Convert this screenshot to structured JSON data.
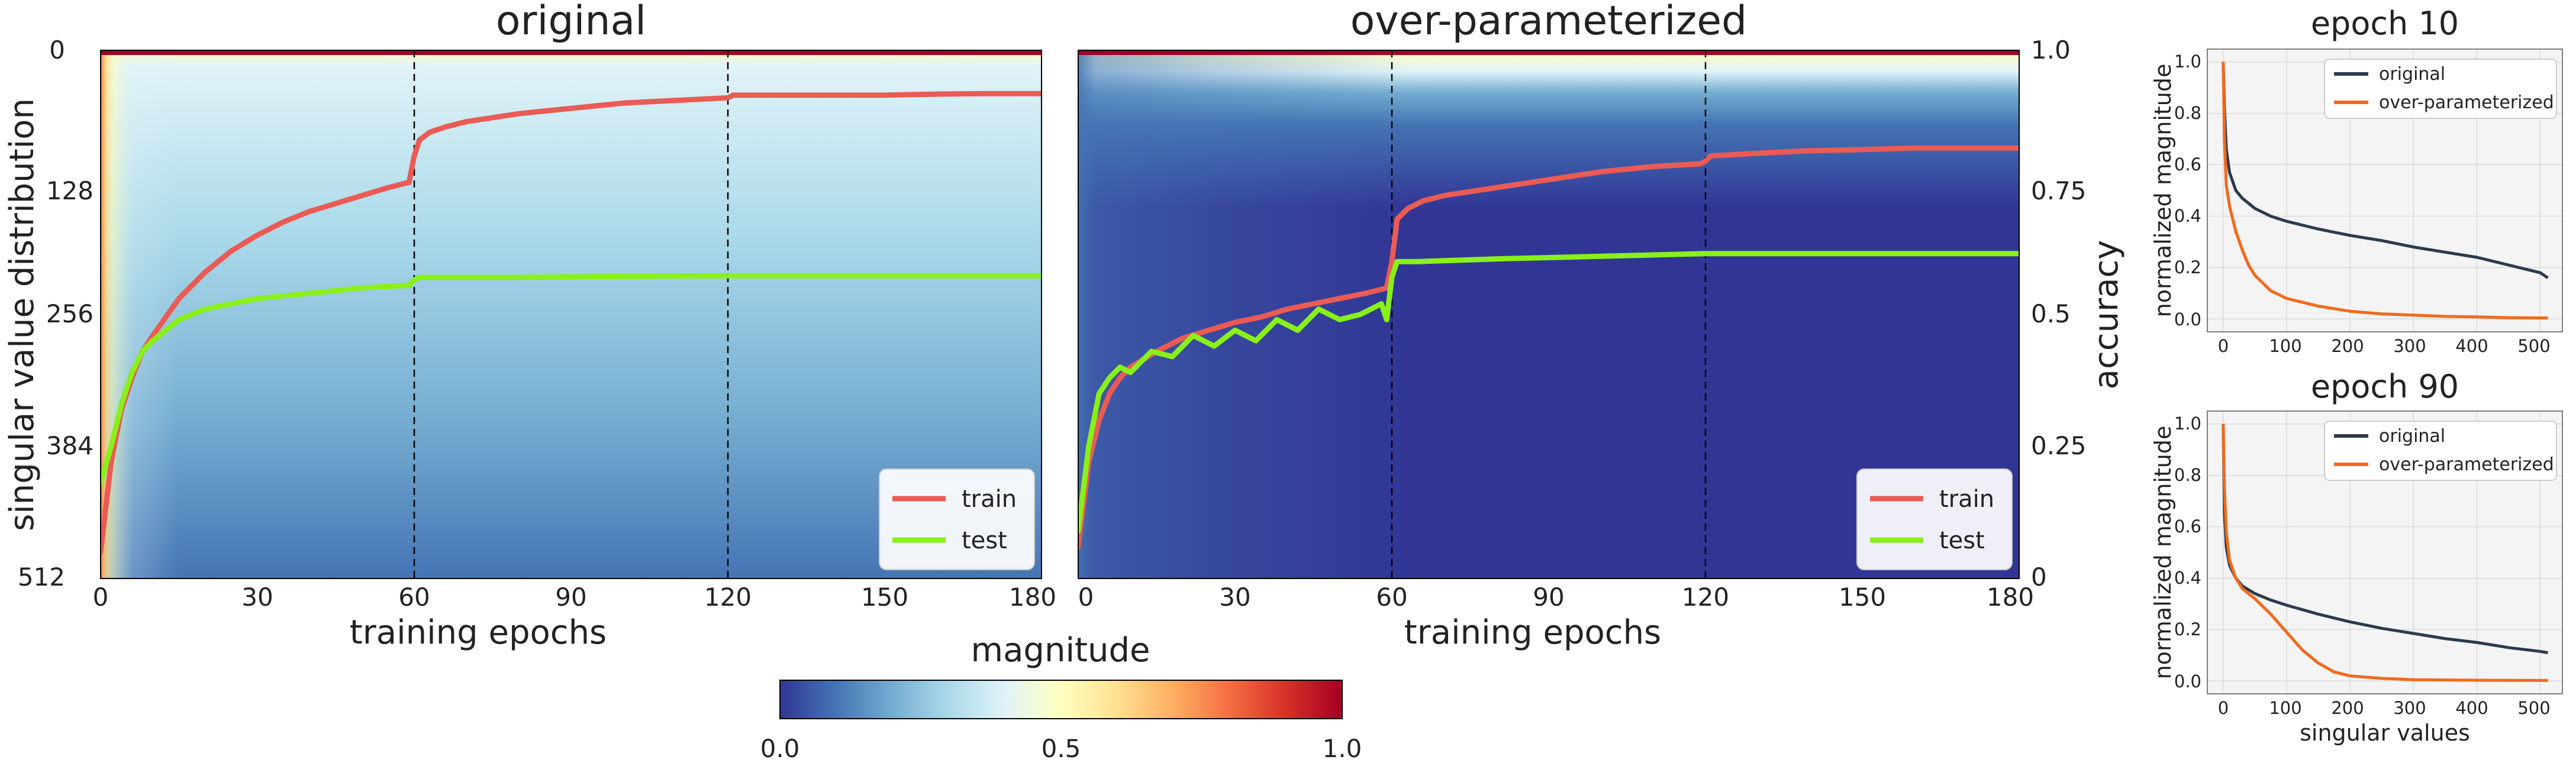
{
  "colors": {
    "train": "#ea5b55",
    "test": "#88f01a",
    "line_original": "#2c3a4c",
    "line_overparam": "#f16a1c",
    "colormap": [
      "#313695",
      "#4575b4",
      "#74add1",
      "#abd9e9",
      "#e0f3f8",
      "#ffffbf",
      "#fee090",
      "#fdae61",
      "#f46d43",
      "#d73027",
      "#a50026"
    ]
  },
  "chart_data": [
    {
      "id": "original",
      "type": "heatmap",
      "title": "original",
      "xlabel": "training epochs",
      "ylabel": "singular value distribution",
      "xlim": [
        0,
        180
      ],
      "ylim": [
        512,
        0
      ],
      "x_ticks": [
        "0",
        "30",
        "60",
        "90",
        "120",
        "150",
        "180"
      ],
      "y_ticks": [
        "0",
        "128",
        "256",
        "384",
        "512"
      ],
      "vlines": [
        60,
        120
      ],
      "heatmap_description": "magnitude of singular values per epoch, colormap RdYlBu_r",
      "legend": {
        "position": "lower-right",
        "entries": [
          "train",
          "test"
        ]
      },
      "series": [
        {
          "name": "train",
          "x": [
            0,
            2,
            4,
            6,
            8,
            10,
            15,
            20,
            25,
            30,
            35,
            40,
            45,
            50,
            55,
            59,
            60,
            61,
            63,
            66,
            70,
            80,
            90,
            100,
            110,
            120,
            121,
            130,
            140,
            150,
            160,
            170,
            180
          ],
          "y": [
            0.05,
            0.22,
            0.32,
            0.38,
            0.43,
            0.46,
            0.53,
            0.58,
            0.62,
            0.65,
            0.675,
            0.695,
            0.71,
            0.725,
            0.74,
            0.75,
            0.8,
            0.83,
            0.845,
            0.855,
            0.865,
            0.88,
            0.89,
            0.9,
            0.905,
            0.91,
            0.915,
            0.915,
            0.915,
            0.915,
            0.917,
            0.918,
            0.918
          ]
        },
        {
          "name": "test",
          "x": [
            0,
            2,
            4,
            6,
            8,
            10,
            15,
            20,
            25,
            30,
            35,
            40,
            45,
            50,
            55,
            59,
            60,
            61,
            65,
            80,
            100,
            120,
            140,
            160,
            180
          ],
          "y": [
            0.18,
            0.25,
            0.33,
            0.39,
            0.43,
            0.45,
            0.49,
            0.51,
            0.52,
            0.53,
            0.535,
            0.54,
            0.545,
            0.55,
            0.553,
            0.555,
            0.565,
            0.57,
            0.57,
            0.57,
            0.572,
            0.573,
            0.573,
            0.573,
            0.573
          ]
        }
      ]
    },
    {
      "id": "overparam",
      "type": "heatmap",
      "title": "over-parameterized",
      "xlabel": "training epochs",
      "ylabel": "accuracy",
      "xlim": [
        0,
        180
      ],
      "ylim": [
        0,
        1
      ],
      "x_ticks": [
        "0",
        "30",
        "60",
        "90",
        "120",
        "150",
        "180"
      ],
      "y_ticks": [
        "0",
        "0.25",
        "0.5",
        "0.75",
        "1.0"
      ],
      "vlines": [
        60,
        120
      ],
      "legend": {
        "position": "lower-right",
        "entries": [
          "train",
          "test"
        ]
      },
      "series": [
        {
          "name": "train",
          "x": [
            0,
            2,
            4,
            6,
            8,
            10,
            15,
            20,
            25,
            30,
            35,
            40,
            45,
            50,
            55,
            59,
            60,
            61,
            63,
            66,
            70,
            80,
            90,
            100,
            110,
            119,
            120,
            121,
            130,
            140,
            150,
            160,
            170,
            180
          ],
          "y": [
            0.06,
            0.22,
            0.3,
            0.35,
            0.38,
            0.4,
            0.43,
            0.455,
            0.47,
            0.485,
            0.495,
            0.51,
            0.52,
            0.53,
            0.54,
            0.55,
            0.6,
            0.68,
            0.7,
            0.715,
            0.725,
            0.74,
            0.755,
            0.77,
            0.78,
            0.785,
            0.79,
            0.8,
            0.805,
            0.81,
            0.812,
            0.815,
            0.815,
            0.815
          ]
        },
        {
          "name": "test",
          "x": [
            0,
            2,
            4,
            6,
            8,
            10,
            14,
            18,
            22,
            26,
            30,
            34,
            38,
            42,
            46,
            50,
            54,
            58,
            59,
            60,
            61,
            65,
            80,
            100,
            120,
            140,
            160,
            180
          ],
          "y": [
            0.09,
            0.25,
            0.35,
            0.38,
            0.4,
            0.39,
            0.43,
            0.42,
            0.46,
            0.44,
            0.47,
            0.45,
            0.49,
            0.47,
            0.51,
            0.49,
            0.5,
            0.52,
            0.49,
            0.57,
            0.6,
            0.6,
            0.605,
            0.61,
            0.615,
            0.615,
            0.615,
            0.615
          ]
        }
      ]
    },
    {
      "id": "epoch10",
      "type": "line",
      "title": "epoch 10",
      "xlabel": "",
      "ylabel": "normalized magnitude",
      "xlim": [
        -25,
        535
      ],
      "ylim": [
        -0.05,
        1.05
      ],
      "x_ticks": [
        "0",
        "100",
        "200",
        "300",
        "400",
        "500"
      ],
      "y_ticks": [
        "0.0",
        "0.2",
        "0.4",
        "0.6",
        "0.8",
        "1.0"
      ],
      "grid": true,
      "legend": {
        "position": "top-right",
        "entries": [
          "original",
          "over-parameterized"
        ]
      },
      "series": [
        {
          "name": "original",
          "x": [
            0,
            2,
            5,
            10,
            20,
            30,
            50,
            75,
            100,
            150,
            200,
            250,
            300,
            350,
            400,
            450,
            500,
            512
          ],
          "y": [
            1.0,
            0.82,
            0.66,
            0.57,
            0.5,
            0.47,
            0.43,
            0.4,
            0.38,
            0.35,
            0.325,
            0.305,
            0.28,
            0.26,
            0.24,
            0.21,
            0.18,
            0.16
          ]
        },
        {
          "name": "over-parameterized",
          "x": [
            0,
            2,
            5,
            10,
            20,
            30,
            40,
            50,
            75,
            100,
            150,
            200,
            250,
            300,
            350,
            400,
            450,
            500,
            512
          ],
          "y": [
            1.0,
            0.7,
            0.52,
            0.44,
            0.34,
            0.27,
            0.21,
            0.17,
            0.11,
            0.08,
            0.05,
            0.03,
            0.02,
            0.015,
            0.01,
            0.008,
            0.005,
            0.004,
            0.004
          ]
        }
      ]
    },
    {
      "id": "epoch90",
      "type": "line",
      "title": "epoch 90",
      "xlabel": "singular values",
      "ylabel": "normalized magnitude",
      "xlim": [
        -25,
        535
      ],
      "ylim": [
        -0.05,
        1.05
      ],
      "x_ticks": [
        "0",
        "100",
        "200",
        "300",
        "400",
        "500"
      ],
      "y_ticks": [
        "0.0",
        "0.2",
        "0.4",
        "0.6",
        "0.8",
        "1.0"
      ],
      "grid": true,
      "legend": {
        "position": "top-right",
        "entries": [
          "original",
          "over-parameterized"
        ]
      },
      "series": [
        {
          "name": "original",
          "x": [
            0,
            2,
            5,
            10,
            20,
            30,
            50,
            75,
            100,
            150,
            200,
            250,
            300,
            350,
            400,
            450,
            500,
            512
          ],
          "y": [
            1.0,
            0.65,
            0.52,
            0.45,
            0.4,
            0.37,
            0.34,
            0.315,
            0.295,
            0.26,
            0.23,
            0.205,
            0.185,
            0.165,
            0.15,
            0.13,
            0.115,
            0.11
          ]
        },
        {
          "name": "over-parameterized",
          "x": [
            0,
            2,
            5,
            10,
            20,
            30,
            40,
            50,
            75,
            100,
            125,
            150,
            175,
            200,
            250,
            300,
            400,
            500,
            512
          ],
          "y": [
            1.0,
            0.75,
            0.58,
            0.47,
            0.4,
            0.36,
            0.34,
            0.32,
            0.26,
            0.19,
            0.12,
            0.07,
            0.035,
            0.02,
            0.01,
            0.005,
            0.003,
            0.002,
            0.002
          ]
        }
      ]
    }
  ],
  "colorbar": {
    "label": "magnitude",
    "ticks": [
      "0.0",
      "0.5",
      "1.0"
    ]
  }
}
